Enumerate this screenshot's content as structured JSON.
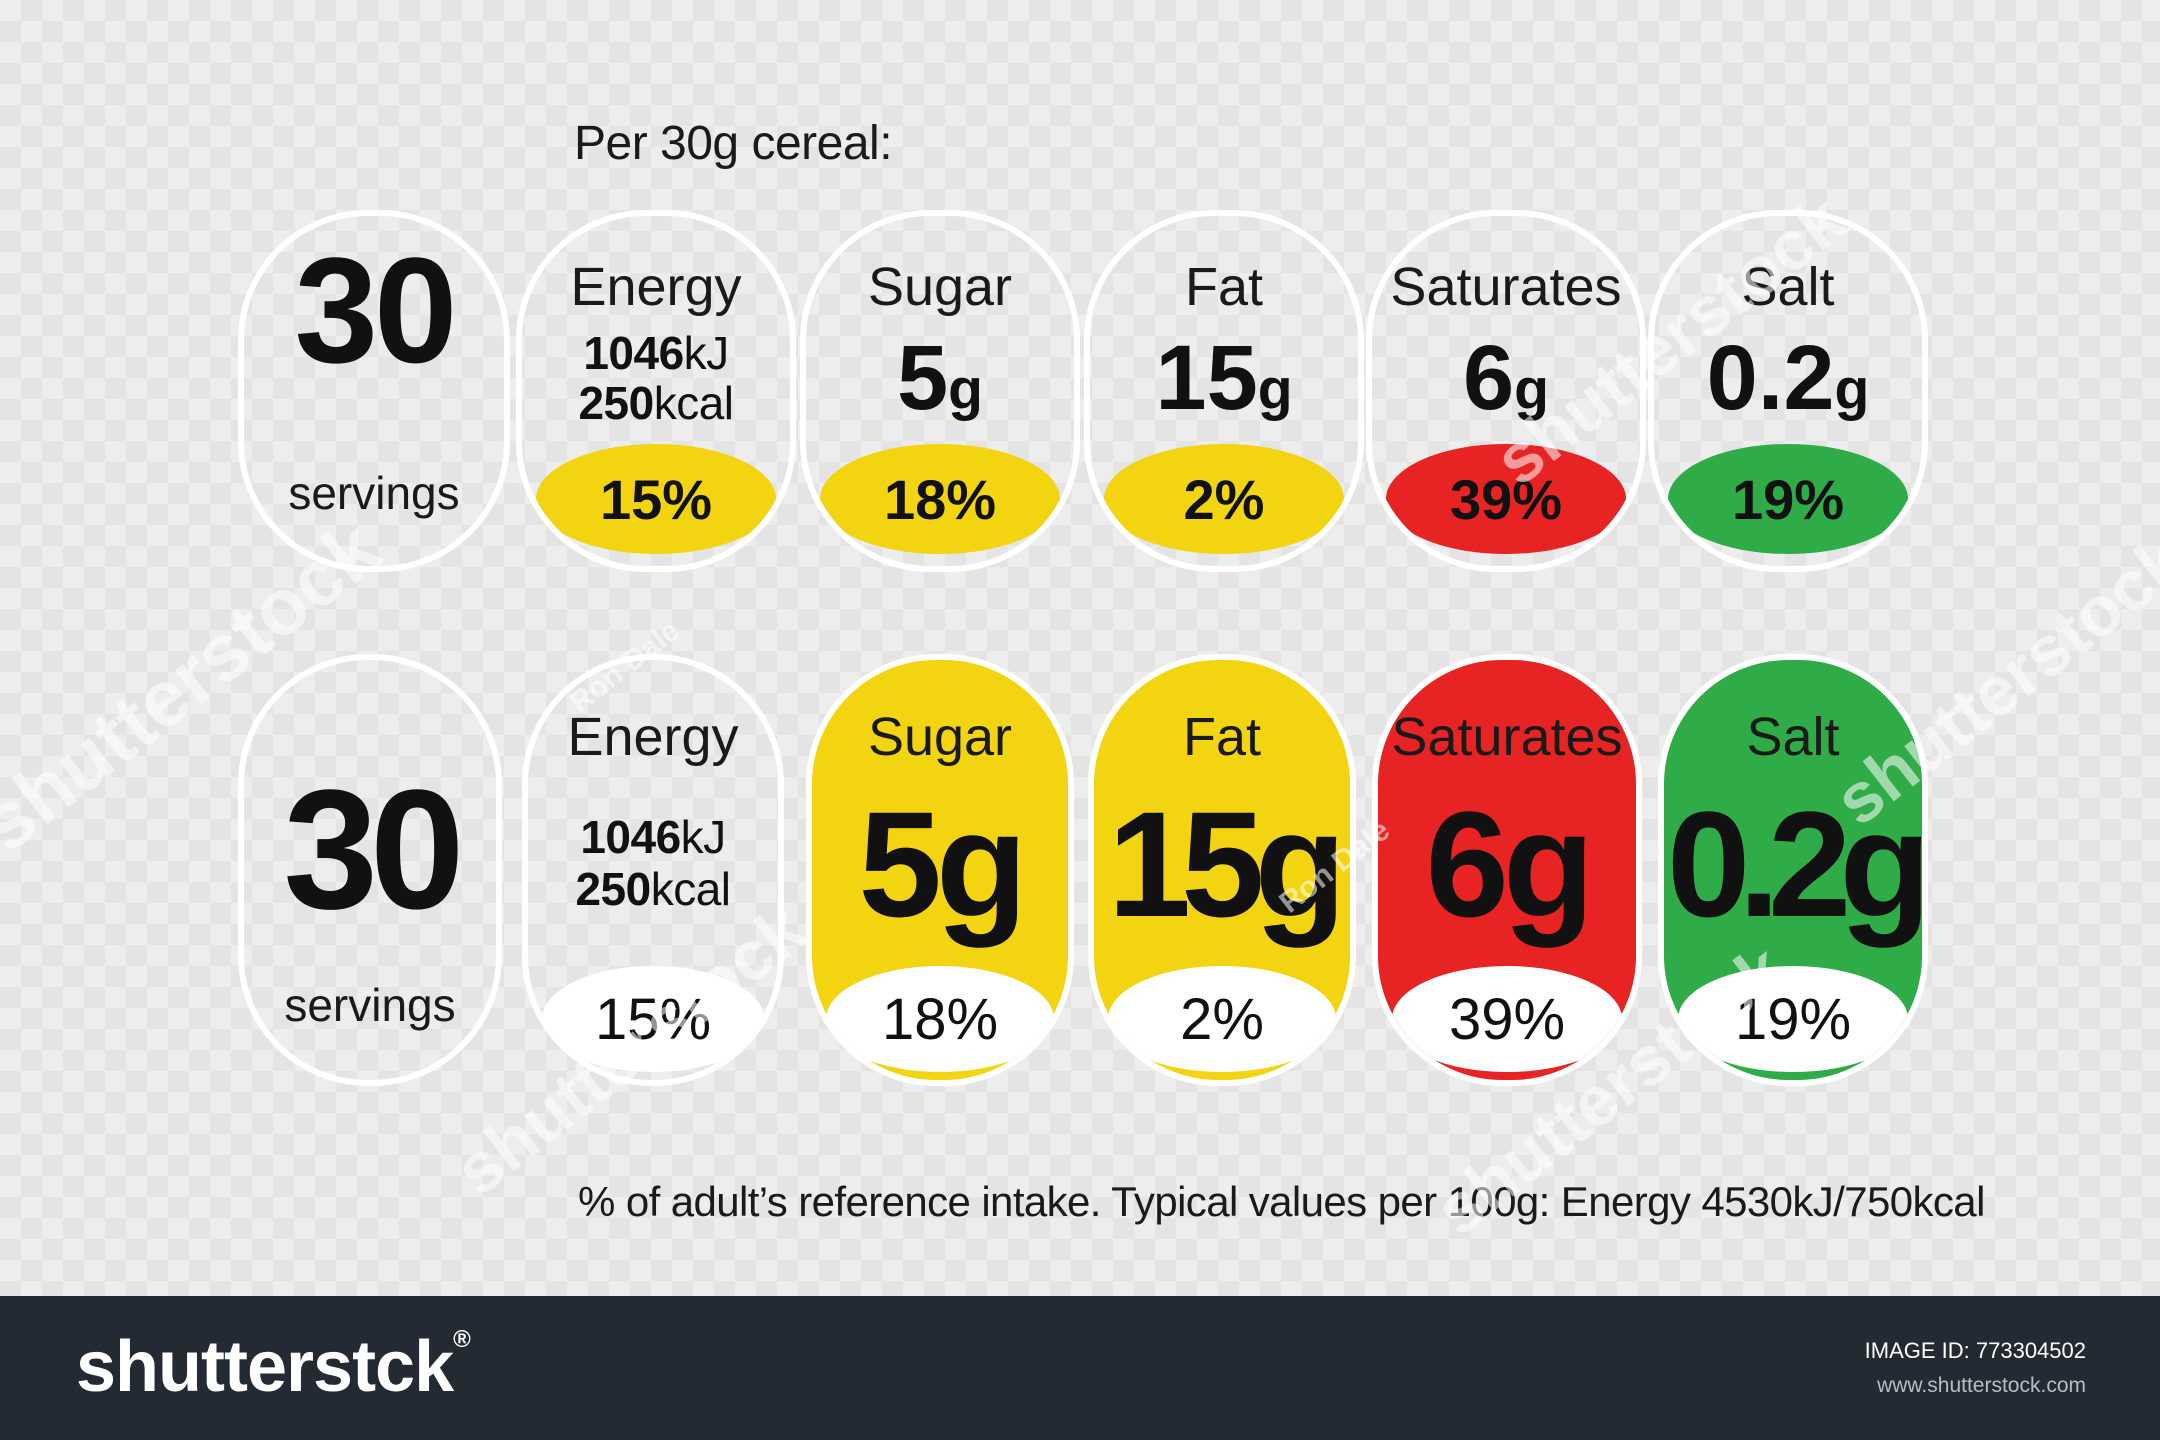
{
  "heading": "Per 30g cereal:",
  "servings": {
    "number": "30",
    "label": "servings"
  },
  "energy": {
    "title": "Energy",
    "kj_value": "1046",
    "kj_unit": "kJ",
    "kcal_value": "250",
    "kcal_unit": "kcal",
    "percent": "15%"
  },
  "nutrients": [
    {
      "title": "Sugar",
      "value": "5",
      "unit": "g",
      "percent": "18%",
      "color": "#f2d411"
    },
    {
      "title": "Fat",
      "value": "15",
      "unit": "g",
      "percent": "2%",
      "color": "#f2d411"
    },
    {
      "title": "Saturates",
      "value": "6",
      "unit": "g",
      "percent": "39%",
      "color": "#e82323"
    },
    {
      "title": "Salt",
      "value": "0.2",
      "unit": "g",
      "percent": "19%",
      "color": "#2fac48"
    }
  ],
  "row2_values": [
    "5g",
    "15g",
    "6g",
    "0.2g"
  ],
  "footnote": "% of adult’s reference intake. Typical values per 100g: Energy 4530kJ/750kcal",
  "watermark": {
    "brand": "shutterstock",
    "author": "Ron Dale"
  },
  "footer": {
    "brand": "shutterstck",
    "brand_mark": "®",
    "image_id_label": "IMAGE ID:",
    "image_id": "773304502",
    "url": "www.shutterstock.com"
  }
}
